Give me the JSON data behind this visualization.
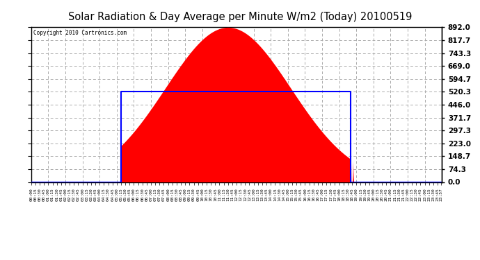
{
  "title": "Solar Radiation & Day Average per Minute W/m2 (Today) 20100519",
  "copyright": "Copyright 2010 Cartronics.com",
  "background_color": "#ffffff",
  "plot_bg_color": "#ffffff",
  "grid_color": "#cccccc",
  "fill_color": "#ff0000",
  "line_color": "#0000ff",
  "ymax": 892.0,
  "yticks": [
    0.0,
    74.3,
    148.7,
    223.0,
    297.3,
    371.7,
    446.0,
    520.3,
    594.7,
    669.0,
    743.3,
    817.7,
    892.0
  ],
  "ylabels": [
    "0.0",
    "74.3",
    "148.7",
    "223.0",
    "297.3",
    "371.7",
    "446.0",
    "520.3",
    "594.7",
    "669.0",
    "743.3",
    "817.7",
    "892.0"
  ],
  "solar_peak": 892.0,
  "solar_peak_minute": 690,
  "sunrise_minute": 315,
  "sunset_minute": 1121,
  "day_avg": 520.3,
  "total_minutes": 1440,
  "gaussian_sigma": 220,
  "spike_minute": 1128,
  "spike_value": 120.0
}
